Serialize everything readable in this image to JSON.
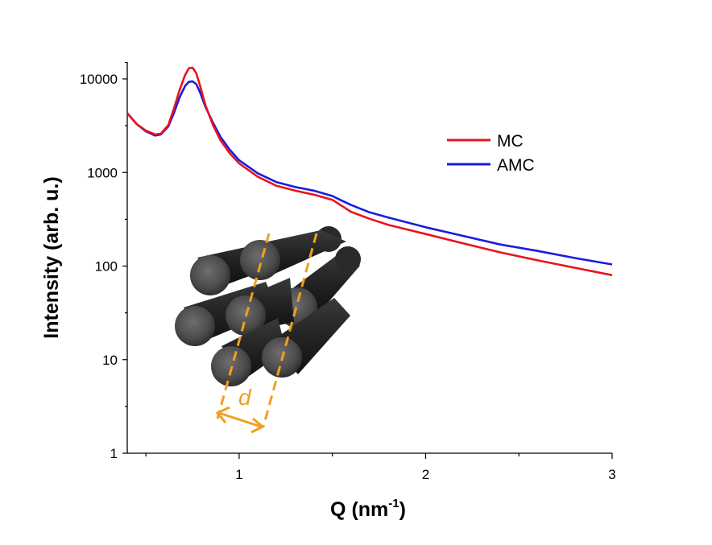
{
  "chart_data": {
    "type": "line",
    "xlabel": "Q (nm",
    "xlabel_sup": "-1",
    "xlabel_close": ")",
    "ylabel": "Intensity (arb. u.)",
    "xlim": [
      0.4,
      3.0
    ],
    "ylim": [
      1,
      15000
    ],
    "y_scale": "log",
    "x_ticks": [
      1,
      2,
      3
    ],
    "x_tick_labels": [
      "1",
      "2",
      "3"
    ],
    "y_ticks": [
      1,
      10,
      100,
      1000,
      10000
    ],
    "y_tick_labels": [
      "1",
      "10",
      "100",
      "1000",
      "10000"
    ],
    "grid": false,
    "legend_position": "upper-right",
    "series": [
      {
        "name": "MC",
        "color": "#e8141b",
        "x": [
          0.4,
          0.45,
          0.5,
          0.55,
          0.58,
          0.62,
          0.65,
          0.68,
          0.71,
          0.73,
          0.75,
          0.77,
          0.79,
          0.82,
          0.86,
          0.9,
          0.95,
          1.0,
          1.1,
          1.2,
          1.3,
          1.4,
          1.5,
          1.55,
          1.6,
          1.7,
          1.8,
          2.0,
          2.2,
          2.4,
          2.6,
          2.8,
          3.0
        ],
        "y": [
          4300,
          3300,
          2800,
          2550,
          2600,
          3200,
          4800,
          7500,
          11000,
          13000,
          13200,
          11500,
          8500,
          5200,
          3200,
          2200,
          1600,
          1250,
          900,
          720,
          640,
          580,
          510,
          440,
          380,
          320,
          275,
          220,
          175,
          140,
          115,
          96,
          80
        ]
      },
      {
        "name": "AMC",
        "color": "#1b1be0",
        "x": [
          0.4,
          0.45,
          0.5,
          0.55,
          0.58,
          0.62,
          0.65,
          0.68,
          0.71,
          0.73,
          0.75,
          0.77,
          0.79,
          0.82,
          0.86,
          0.9,
          0.95,
          1.0,
          1.1,
          1.2,
          1.3,
          1.4,
          1.5,
          1.55,
          1.6,
          1.7,
          1.8,
          2.0,
          2.2,
          2.4,
          2.6,
          2.8,
          3.0
        ],
        "y": [
          4300,
          3300,
          2750,
          2480,
          2550,
          3100,
          4300,
          6300,
          8400,
          9300,
          9400,
          8800,
          7200,
          5000,
          3400,
          2400,
          1750,
          1350,
          980,
          790,
          700,
          640,
          560,
          500,
          450,
          375,
          330,
          260,
          210,
          170,
          145,
          122,
          104
        ]
      }
    ],
    "annotation": "d"
  }
}
